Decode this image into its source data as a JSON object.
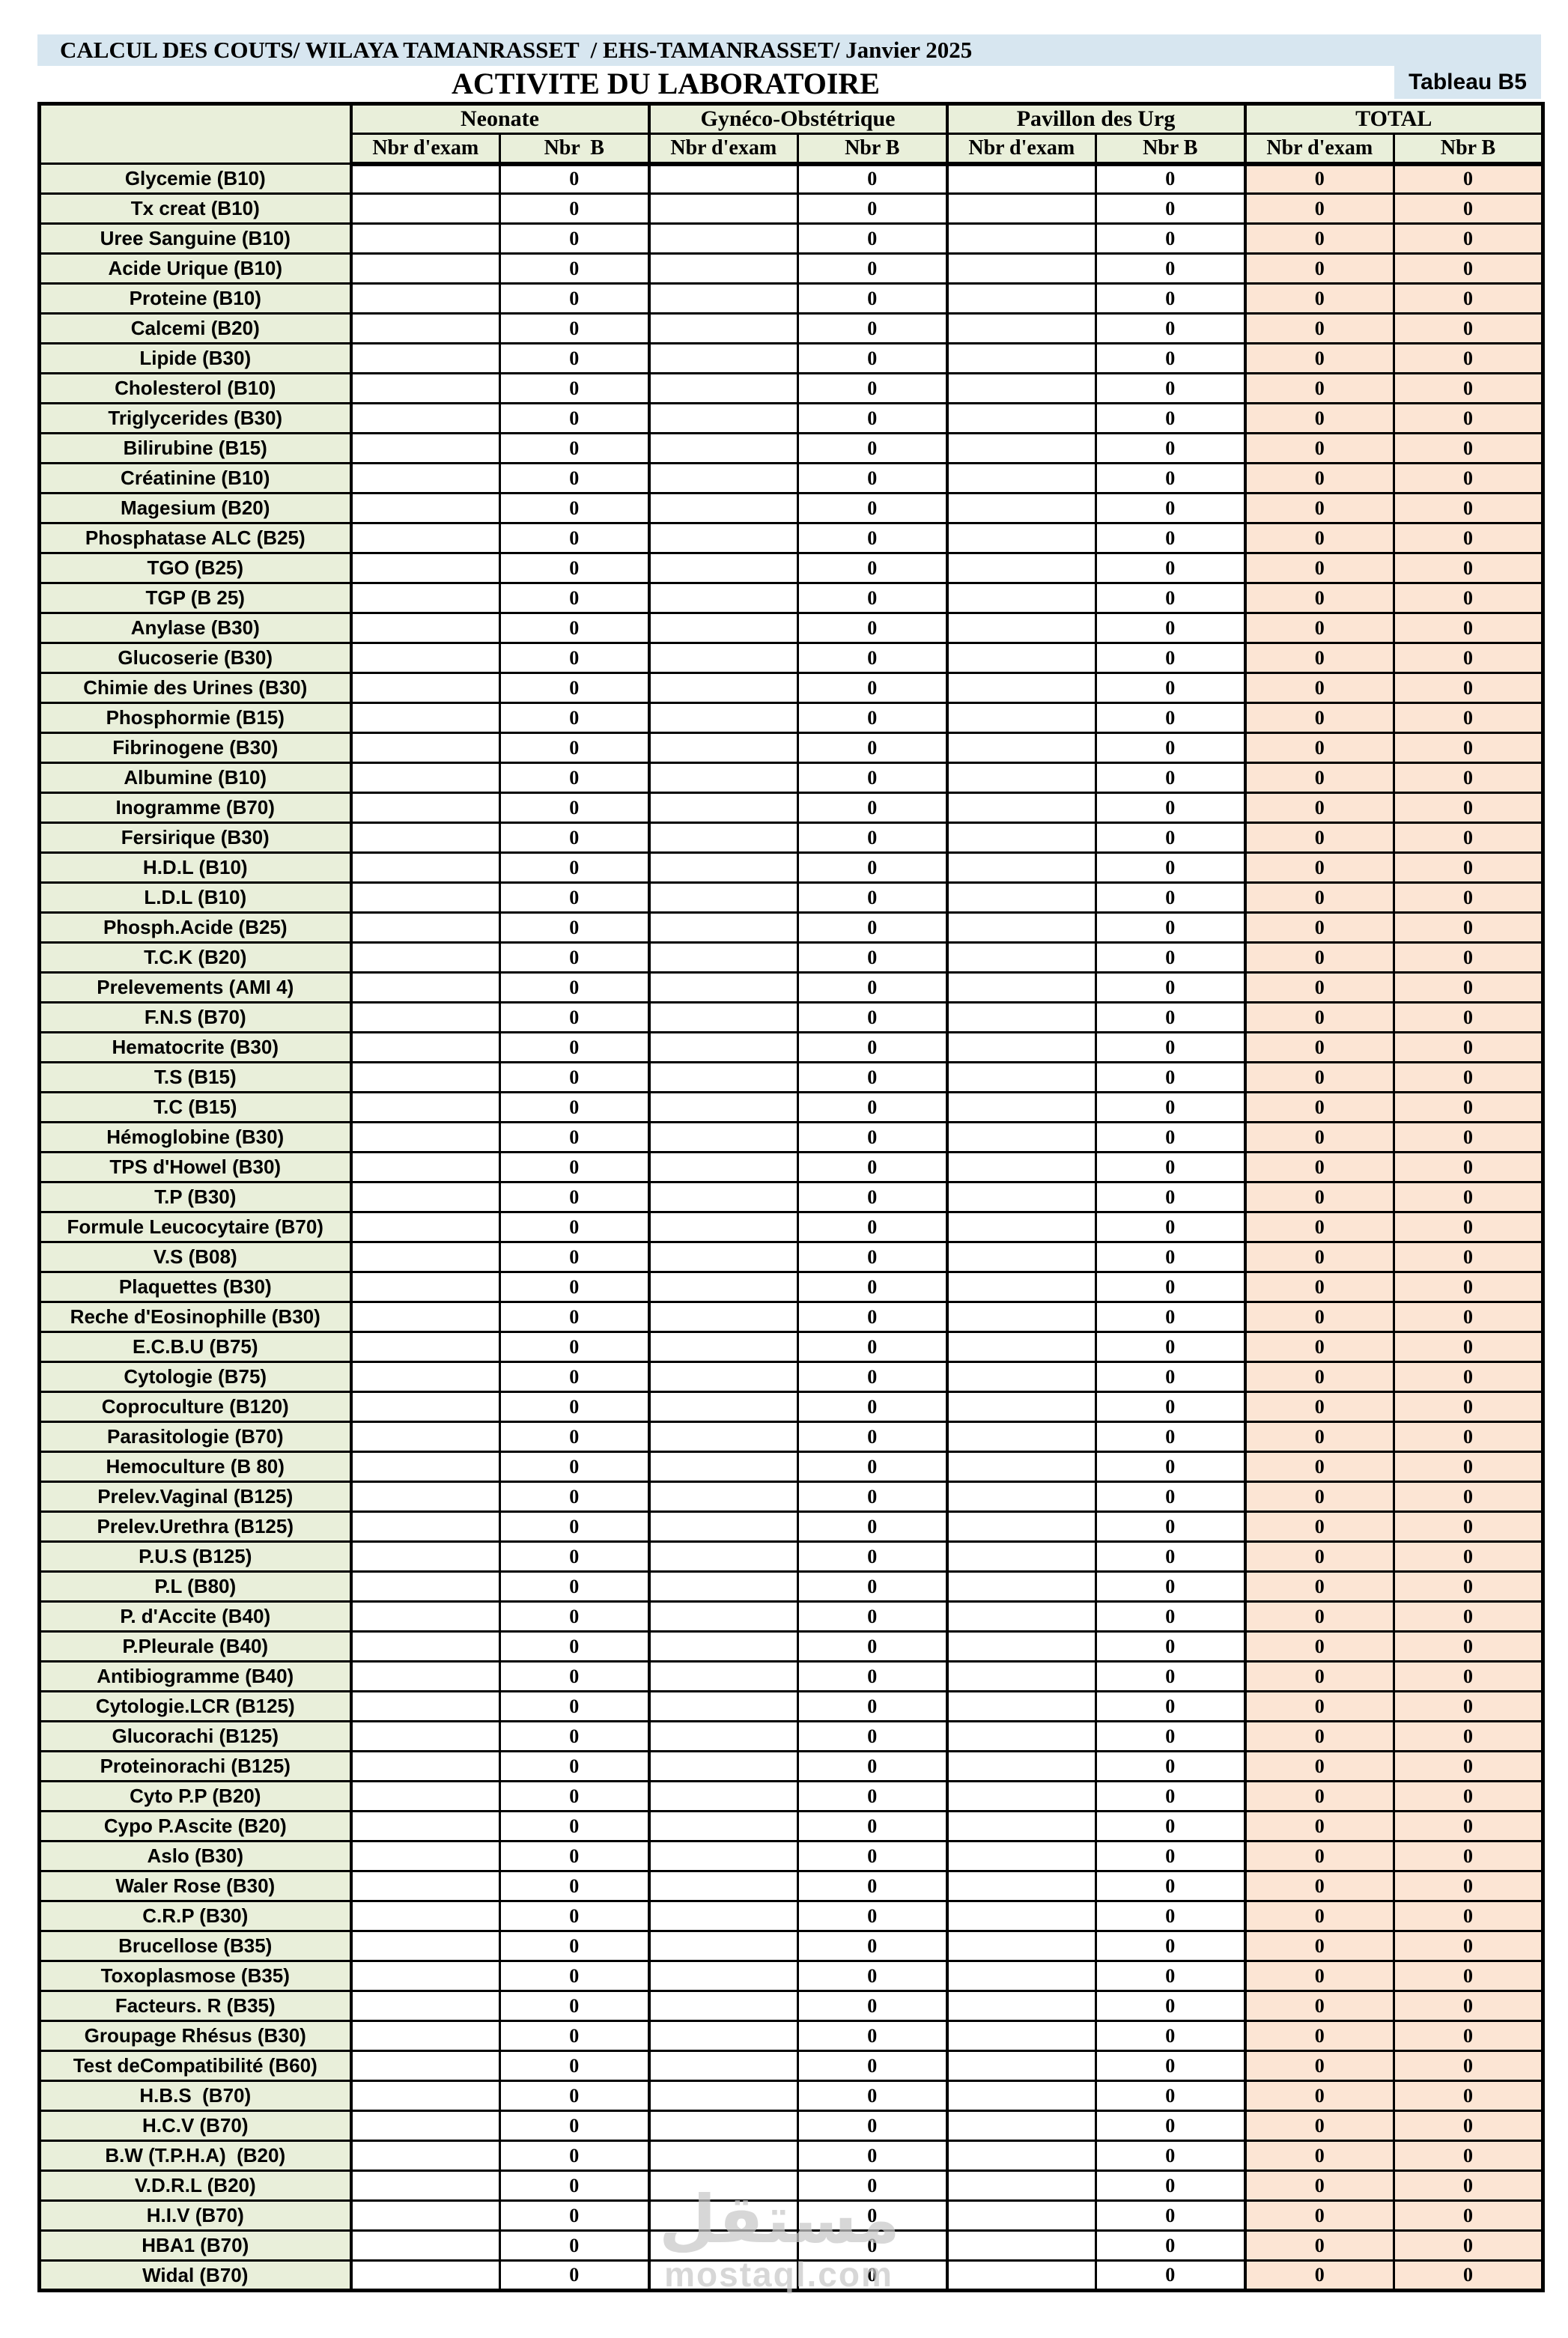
{
  "page": {
    "title_bar": "CALCUL DES COUTS/ WILAYA TAMANRASSET  / EHS-TAMANRASSET/ Janvier 2025",
    "subtitle": "ACTIVITE DU LABORATOIRE",
    "tableau_badge": "Tableau B5"
  },
  "colors": {
    "title_bar_bg": "#d7e6f0",
    "badge_bg": "#d7e6f0",
    "header_bg": "#e9efda",
    "label_column_bg": "#e9efda",
    "total_column_bg": "#fce5d4",
    "border": "#000000",
    "text": "#000000",
    "watermark": "#c9c9c9"
  },
  "table": {
    "corner_label": "",
    "groups": [
      {
        "label": "Neonate",
        "columns": [
          "Nbr d'exam",
          "Nbr  B"
        ],
        "total": false
      },
      {
        "label": "Gynéco-Obstétrique",
        "columns": [
          "Nbr d'exam",
          "Nbr B"
        ],
        "total": false
      },
      {
        "label": "Pavillon des Urg",
        "columns": [
          "Nbr d'exam",
          "Nbr B"
        ],
        "total": false
      },
      {
        "label": "TOTAL",
        "columns": [
          "Nbr d'exam",
          "Nbr B"
        ],
        "total": true
      }
    ],
    "rows": [
      {
        "label": "Glycemie (B10)",
        "values": [
          "",
          "0",
          "",
          "0",
          "",
          "0",
          "0",
          "0"
        ]
      },
      {
        "label": "Tx creat (B10)",
        "values": [
          "",
          "0",
          "",
          "0",
          "",
          "0",
          "0",
          "0"
        ]
      },
      {
        "label": "Uree Sanguine (B10)",
        "values": [
          "",
          "0",
          "",
          "0",
          "",
          "0",
          "0",
          "0"
        ]
      },
      {
        "label": "Acide Urique (B10)",
        "values": [
          "",
          "0",
          "",
          "0",
          "",
          "0",
          "0",
          "0"
        ]
      },
      {
        "label": "Proteine (B10)",
        "values": [
          "",
          "0",
          "",
          "0",
          "",
          "0",
          "0",
          "0"
        ]
      },
      {
        "label": "Calcemi (B20)",
        "values": [
          "",
          "0",
          "",
          "0",
          "",
          "0",
          "0",
          "0"
        ]
      },
      {
        "label": "Lipide (B30)",
        "values": [
          "",
          "0",
          "",
          "0",
          "",
          "0",
          "0",
          "0"
        ]
      },
      {
        "label": "Cholesterol (B10)",
        "values": [
          "",
          "0",
          "",
          "0",
          "",
          "0",
          "0",
          "0"
        ]
      },
      {
        "label": "Triglycerides (B30)",
        "values": [
          "",
          "0",
          "",
          "0",
          "",
          "0",
          "0",
          "0"
        ]
      },
      {
        "label": "Bilirubine (B15)",
        "values": [
          "",
          "0",
          "",
          "0",
          "",
          "0",
          "0",
          "0"
        ]
      },
      {
        "label": "Créatinine (B10)",
        "values": [
          "",
          "0",
          "",
          "0",
          "",
          "0",
          "0",
          "0"
        ]
      },
      {
        "label": "Magesium (B20)",
        "values": [
          "",
          "0",
          "",
          "0",
          "",
          "0",
          "0",
          "0"
        ]
      },
      {
        "label": "Phosphatase ALC (B25)",
        "values": [
          "",
          "0",
          "",
          "0",
          "",
          "0",
          "0",
          "0"
        ]
      },
      {
        "label": "TGO (B25)",
        "values": [
          "",
          "0",
          "",
          "0",
          "",
          "0",
          "0",
          "0"
        ]
      },
      {
        "label": "TGP (B 25)",
        "values": [
          "",
          "0",
          "",
          "0",
          "",
          "0",
          "0",
          "0"
        ]
      },
      {
        "label": "Anylase (B30)",
        "values": [
          "",
          "0",
          "",
          "0",
          "",
          "0",
          "0",
          "0"
        ]
      },
      {
        "label": "Glucoserie (B30)",
        "values": [
          "",
          "0",
          "",
          "0",
          "",
          "0",
          "0",
          "0"
        ]
      },
      {
        "label": "Chimie des Urines (B30)",
        "values": [
          "",
          "0",
          "",
          "0",
          "",
          "0",
          "0",
          "0"
        ]
      },
      {
        "label": "Phosphormie (B15)",
        "values": [
          "",
          "0",
          "",
          "0",
          "",
          "0",
          "0",
          "0"
        ]
      },
      {
        "label": "Fibrinogene (B30)",
        "values": [
          "",
          "0",
          "",
          "0",
          "",
          "0",
          "0",
          "0"
        ]
      },
      {
        "label": "Albumine (B10)",
        "values": [
          "",
          "0",
          "",
          "0",
          "",
          "0",
          "0",
          "0"
        ]
      },
      {
        "label": "Inogramme (B70)",
        "values": [
          "",
          "0",
          "",
          "0",
          "",
          "0",
          "0",
          "0"
        ]
      },
      {
        "label": "Fersirique (B30)",
        "values": [
          "",
          "0",
          "",
          "0",
          "",
          "0",
          "0",
          "0"
        ]
      },
      {
        "label": "H.D.L (B10)",
        "values": [
          "",
          "0",
          "",
          "0",
          "",
          "0",
          "0",
          "0"
        ]
      },
      {
        "label": "L.D.L (B10)",
        "values": [
          "",
          "0",
          "",
          "0",
          "",
          "0",
          "0",
          "0"
        ]
      },
      {
        "label": "Phosph.Acide (B25)",
        "values": [
          "",
          "0",
          "",
          "0",
          "",
          "0",
          "0",
          "0"
        ]
      },
      {
        "label": "T.C.K (B20)",
        "values": [
          "",
          "0",
          "",
          "0",
          "",
          "0",
          "0",
          "0"
        ]
      },
      {
        "label": "Prelevements (AMI 4)",
        "values": [
          "",
          "0",
          "",
          "0",
          "",
          "0",
          "0",
          "0"
        ]
      },
      {
        "label": "F.N.S (B70)",
        "values": [
          "",
          "0",
          "",
          "0",
          "",
          "0",
          "0",
          "0"
        ]
      },
      {
        "label": "Hematocrite (B30)",
        "values": [
          "",
          "0",
          "",
          "0",
          "",
          "0",
          "0",
          "0"
        ]
      },
      {
        "label": "T.S (B15)",
        "values": [
          "",
          "0",
          "",
          "0",
          "",
          "0",
          "0",
          "0"
        ]
      },
      {
        "label": "T.C (B15)",
        "values": [
          "",
          "0",
          "",
          "0",
          "",
          "0",
          "0",
          "0"
        ]
      },
      {
        "label": "Hémoglobine (B30)",
        "values": [
          "",
          "0",
          "",
          "0",
          "",
          "0",
          "0",
          "0"
        ]
      },
      {
        "label": "TPS d'Howel (B30)",
        "values": [
          "",
          "0",
          "",
          "0",
          "",
          "0",
          "0",
          "0"
        ]
      },
      {
        "label": "T.P (B30)",
        "values": [
          "",
          "0",
          "",
          "0",
          "",
          "0",
          "0",
          "0"
        ]
      },
      {
        "label": "Formule Leucocytaire (B70)",
        "values": [
          "",
          "0",
          "",
          "0",
          "",
          "0",
          "0",
          "0"
        ]
      },
      {
        "label": "V.S (B08)",
        "values": [
          "",
          "0",
          "",
          "0",
          "",
          "0",
          "0",
          "0"
        ]
      },
      {
        "label": "Plaquettes (B30)",
        "values": [
          "",
          "0",
          "",
          "0",
          "",
          "0",
          "0",
          "0"
        ]
      },
      {
        "label": "Reche d'Eosinophille (B30)",
        "values": [
          "",
          "0",
          "",
          "0",
          "",
          "0",
          "0",
          "0"
        ]
      },
      {
        "label": "E.C.B.U (B75)",
        "values": [
          "",
          "0",
          "",
          "0",
          "",
          "0",
          "0",
          "0"
        ]
      },
      {
        "label": "Cytologie (B75)",
        "values": [
          "",
          "0",
          "",
          "0",
          "",
          "0",
          "0",
          "0"
        ]
      },
      {
        "label": "Coproculture (B120)",
        "values": [
          "",
          "0",
          "",
          "0",
          "",
          "0",
          "0",
          "0"
        ]
      },
      {
        "label": "Parasitologie (B70)",
        "values": [
          "",
          "0",
          "",
          "0",
          "",
          "0",
          "0",
          "0"
        ]
      },
      {
        "label": "Hemoculture (B 80)",
        "values": [
          "",
          "0",
          "",
          "0",
          "",
          "0",
          "0",
          "0"
        ]
      },
      {
        "label": "Prelev.Vaginal (B125)",
        "values": [
          "",
          "0",
          "",
          "0",
          "",
          "0",
          "0",
          "0"
        ]
      },
      {
        "label": "Prelev.Urethra (B125)",
        "values": [
          "",
          "0",
          "",
          "0",
          "",
          "0",
          "0",
          "0"
        ]
      },
      {
        "label": "P.U.S (B125)",
        "values": [
          "",
          "0",
          "",
          "0",
          "",
          "0",
          "0",
          "0"
        ]
      },
      {
        "label": "P.L (B80)",
        "values": [
          "",
          "0",
          "",
          "0",
          "",
          "0",
          "0",
          "0"
        ]
      },
      {
        "label": "P. d'Accite (B40)",
        "values": [
          "",
          "0",
          "",
          "0",
          "",
          "0",
          "0",
          "0"
        ]
      },
      {
        "label": "P.Pleurale (B40)",
        "values": [
          "",
          "0",
          "",
          "0",
          "",
          "0",
          "0",
          "0"
        ]
      },
      {
        "label": "Antibiogramme (B40)",
        "values": [
          "",
          "0",
          "",
          "0",
          "",
          "0",
          "0",
          "0"
        ]
      },
      {
        "label": "Cytologie.LCR (B125)",
        "values": [
          "",
          "0",
          "",
          "0",
          "",
          "0",
          "0",
          "0"
        ]
      },
      {
        "label": "Glucorachi (B125)",
        "values": [
          "",
          "0",
          "",
          "0",
          "",
          "0",
          "0",
          "0"
        ]
      },
      {
        "label": "Proteinorachi (B125)",
        "values": [
          "",
          "0",
          "",
          "0",
          "",
          "0",
          "0",
          "0"
        ]
      },
      {
        "label": "Cyto P.P (B20)",
        "values": [
          "",
          "0",
          "",
          "0",
          "",
          "0",
          "0",
          "0"
        ]
      },
      {
        "label": "Cypo P.Ascite (B20)",
        "values": [
          "",
          "0",
          "",
          "0",
          "",
          "0",
          "0",
          "0"
        ]
      },
      {
        "label": "Aslo (B30)",
        "values": [
          "",
          "0",
          "",
          "0",
          "",
          "0",
          "0",
          "0"
        ]
      },
      {
        "label": "Waler Rose (B30)",
        "values": [
          "",
          "0",
          "",
          "0",
          "",
          "0",
          "0",
          "0"
        ]
      },
      {
        "label": "C.R.P (B30)",
        "values": [
          "",
          "0",
          "",
          "0",
          "",
          "0",
          "0",
          "0"
        ]
      },
      {
        "label": "Brucellose (B35)",
        "values": [
          "",
          "0",
          "",
          "0",
          "",
          "0",
          "0",
          "0"
        ]
      },
      {
        "label": "Toxoplasmose (B35)",
        "values": [
          "",
          "0",
          "",
          "0",
          "",
          "0",
          "0",
          "0"
        ]
      },
      {
        "label": "Facteurs. R (B35)",
        "values": [
          "",
          "0",
          "",
          "0",
          "",
          "0",
          "0",
          "0"
        ]
      },
      {
        "label": "Groupage Rhésus (B30)",
        "values": [
          "",
          "0",
          "",
          "0",
          "",
          "0",
          "0",
          "0"
        ]
      },
      {
        "label": "Test deCompatibilité (B60)",
        "values": [
          "",
          "0",
          "",
          "0",
          "",
          "0",
          "0",
          "0"
        ]
      },
      {
        "label": "H.B.S  (B70)",
        "values": [
          "",
          "0",
          "",
          "0",
          "",
          "0",
          "0",
          "0"
        ]
      },
      {
        "label": "H.C.V (B70)",
        "values": [
          "",
          "0",
          "",
          "0",
          "",
          "0",
          "0",
          "0"
        ]
      },
      {
        "label": "B.W (T.P.H.A)  (B20)",
        "values": [
          "",
          "0",
          "",
          "0",
          "",
          "0",
          "0",
          "0"
        ]
      },
      {
        "label": "V.D.R.L (B20)",
        "values": [
          "",
          "0",
          "",
          "0",
          "",
          "0",
          "0",
          "0"
        ]
      },
      {
        "label": "H.I.V (B70)",
        "values": [
          "",
          "0",
          "",
          "0",
          "",
          "0",
          "0",
          "0"
        ]
      },
      {
        "label": "HBA1 (B70)",
        "values": [
          "",
          "0",
          "",
          "0",
          "",
          "0",
          "0",
          "0"
        ]
      },
      {
        "label": "Widal (B70)",
        "values": [
          "",
          "0",
          "",
          "0",
          "",
          "0",
          "0",
          "0"
        ]
      }
    ]
  },
  "watermark": {
    "arabic": "مستقل",
    "url": "mostaql.com"
  }
}
